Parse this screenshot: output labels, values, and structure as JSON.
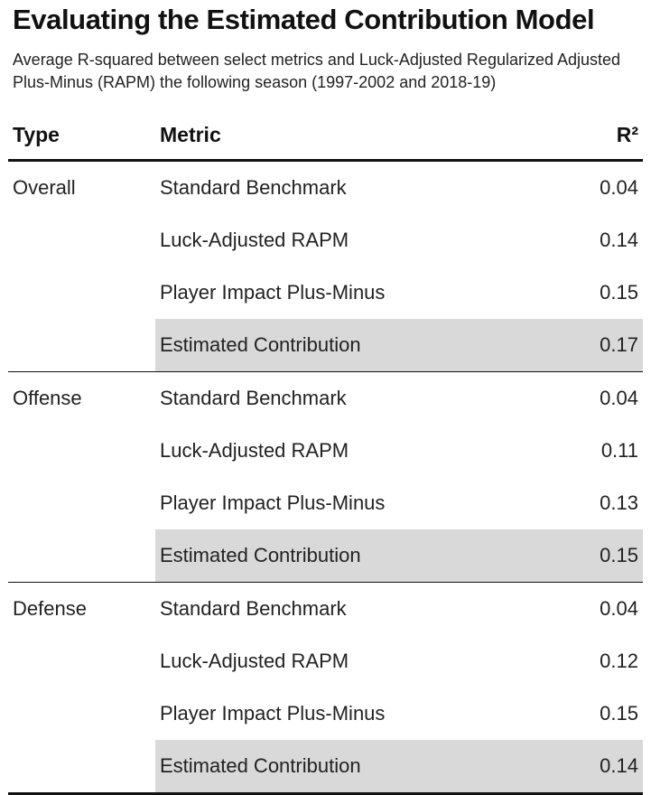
{
  "chart_data": {
    "type": "table",
    "title": "Evaluating the Estimated Contribution Model",
    "subtitle": "Average R-squared between select metrics and Luck-Adjusted Regularized Adjusted Plus-Minus (RAPM) the following season (1997-2002 and 2018-19)",
    "columns": [
      "Type",
      "Metric",
      "R²"
    ],
    "highlight_color": "#d9d9d9",
    "groups": [
      {
        "type": "Overall",
        "rows": [
          {
            "metric": "Standard Benchmark",
            "value": "0.04",
            "highlight": false
          },
          {
            "metric": "Luck-Adjusted RAPM",
            "value": "0.14",
            "highlight": false
          },
          {
            "metric": "Player Impact Plus-Minus",
            "value": "0.15",
            "highlight": false
          },
          {
            "metric": "Estimated Contribution",
            "value": "0.17",
            "highlight": true
          }
        ]
      },
      {
        "type": "Offense",
        "rows": [
          {
            "metric": "Standard Benchmark",
            "value": "0.04",
            "highlight": false
          },
          {
            "metric": "Luck-Adjusted RAPM",
            "value": "0.11",
            "highlight": false
          },
          {
            "metric": "Player Impact Plus-Minus",
            "value": "0.13",
            "highlight": false
          },
          {
            "metric": "Estimated Contribution",
            "value": "0.15",
            "highlight": true
          }
        ]
      },
      {
        "type": "Defense",
        "rows": [
          {
            "metric": "Standard Benchmark",
            "value": "0.04",
            "highlight": false
          },
          {
            "metric": "Luck-Adjusted RAPM",
            "value": "0.12",
            "highlight": false
          },
          {
            "metric": "Player Impact Plus-Minus",
            "value": "0.15",
            "highlight": false
          },
          {
            "metric": "Estimated Contribution",
            "value": "0.14",
            "highlight": true
          }
        ]
      }
    ]
  }
}
